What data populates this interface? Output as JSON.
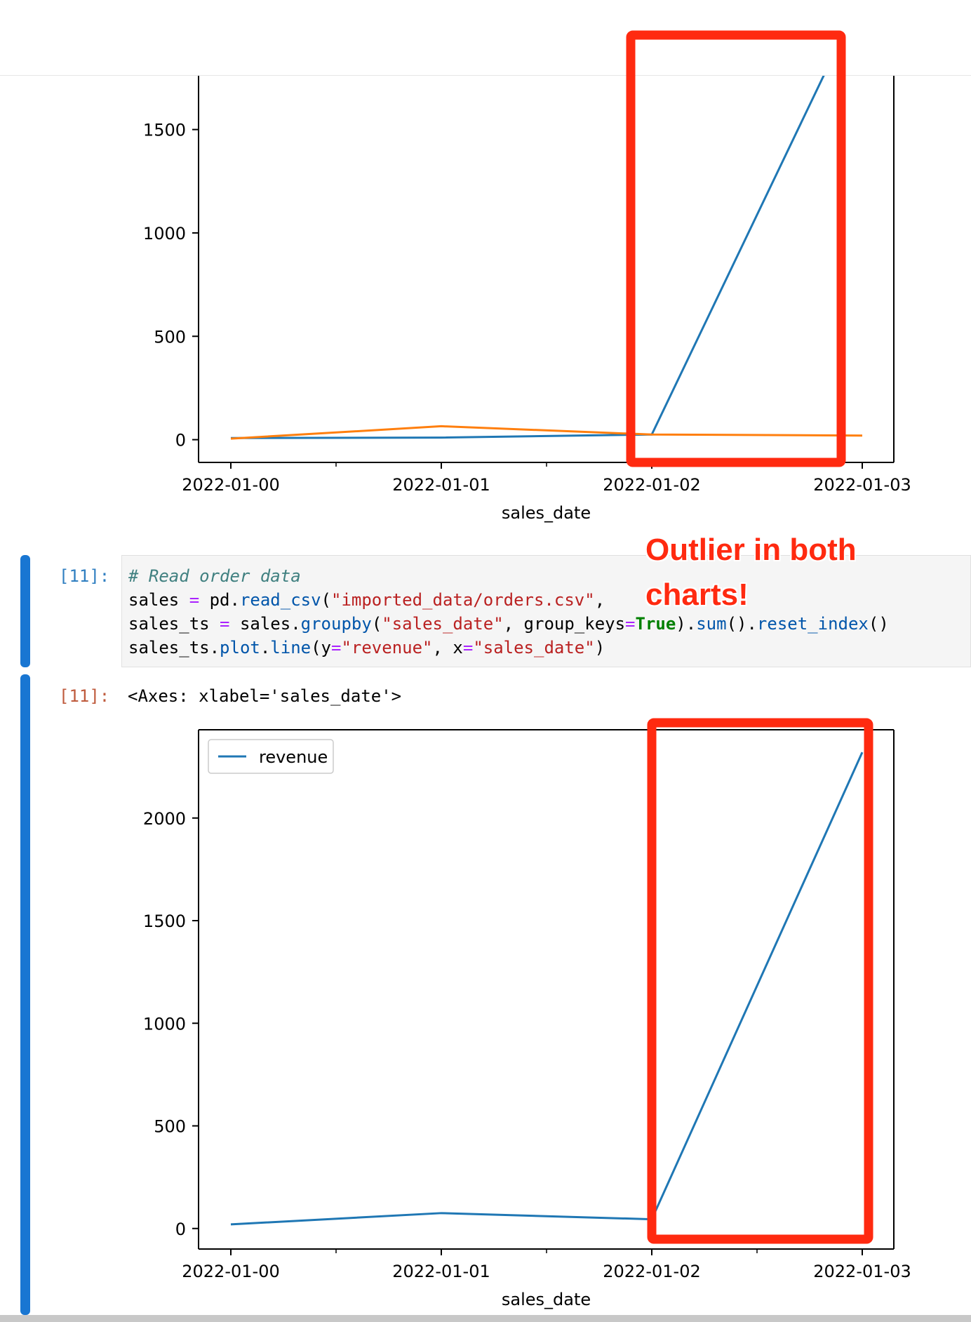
{
  "notebook": {
    "code_cell": {
      "prompt": "[11]:",
      "lines": [
        [
          {
            "t": "# Read order data",
            "c": "c-comment"
          }
        ],
        [
          {
            "t": "sales ",
            "c": ""
          },
          {
            "t": "=",
            "c": "c-op"
          },
          {
            "t": " pd.",
            "c": ""
          },
          {
            "t": "read_csv",
            "c": "c-func"
          },
          {
            "t": "(",
            "c": ""
          },
          {
            "t": "\"imported_data/orders.csv\"",
            "c": "c-str"
          },
          {
            "t": ", ",
            "c": ""
          }
        ],
        [
          {
            "t": "sales_ts ",
            "c": ""
          },
          {
            "t": "=",
            "c": "c-op"
          },
          {
            "t": " sales.",
            "c": ""
          },
          {
            "t": "groupby",
            "c": "c-func"
          },
          {
            "t": "(",
            "c": ""
          },
          {
            "t": "\"sales_date\"",
            "c": "c-str"
          },
          {
            "t": ", group_keys",
            "c": ""
          },
          {
            "t": "=",
            "c": "c-op"
          },
          {
            "t": "True",
            "c": "c-kw"
          },
          {
            "t": ").",
            "c": ""
          },
          {
            "t": "sum",
            "c": "c-func"
          },
          {
            "t": "().",
            "c": ""
          },
          {
            "t": "reset_index",
            "c": "c-func"
          },
          {
            "t": "()",
            "c": ""
          }
        ],
        [
          {
            "t": "sales_ts.",
            "c": ""
          },
          {
            "t": "plot",
            "c": "c-func"
          },
          {
            "t": ".",
            "c": ""
          },
          {
            "t": "line",
            "c": "c-func"
          },
          {
            "t": "(y",
            "c": ""
          },
          {
            "t": "=",
            "c": "c-op"
          },
          {
            "t": "\"revenue\"",
            "c": "c-str"
          },
          {
            "t": ", x",
            "c": ""
          },
          {
            "t": "=",
            "c": "c-op"
          },
          {
            "t": "\"sales_date\"",
            "c": "c-str"
          },
          {
            "t": ")",
            "c": ""
          }
        ]
      ]
    },
    "output_cell": {
      "prompt": "[11]:",
      "text": "<Axes: xlabel='sales_date'>"
    },
    "annotation": "Outlier in both\ncharts!"
  },
  "colors": {
    "blue_series": "#1f77b4",
    "orange_series": "#ff7f0e",
    "highlight_box": "#ff2a10",
    "cell_bar": "#1976d2"
  },
  "chart_data": [
    {
      "type": "line",
      "x": [
        "2022-01-00",
        "2022-01-01",
        "2022-01-02",
        "2022-01-03"
      ],
      "xlabel": "sales_date",
      "ylabel": "",
      "ylim": [
        -110,
        1760
      ],
      "yticks": [
        0,
        500,
        1000,
        1500
      ],
      "legend": null,
      "series": [
        {
          "values": [
            8,
            10,
            25,
            2150
          ],
          "color": "#1f77b4"
        },
        {
          "values": [
            5,
            65,
            25,
            20
          ],
          "color": "#ff7f0e"
        }
      ],
      "highlight_range": [
        1.9,
        2.9
      ]
    },
    {
      "type": "line",
      "x": [
        "2022-01-00",
        "2022-01-01",
        "2022-01-02",
        "2022-01-03"
      ],
      "xlabel": "sales_date",
      "ylabel": "",
      "ylim": [
        -100,
        2430
      ],
      "yticks": [
        0,
        500,
        1000,
        1500,
        2000
      ],
      "legend": "upper left",
      "series": [
        {
          "name": "revenue",
          "values": [
            20,
            75,
            45,
            2320
          ],
          "color": "#1f77b4"
        }
      ],
      "highlight_range": [
        2.0,
        3.03
      ]
    }
  ]
}
